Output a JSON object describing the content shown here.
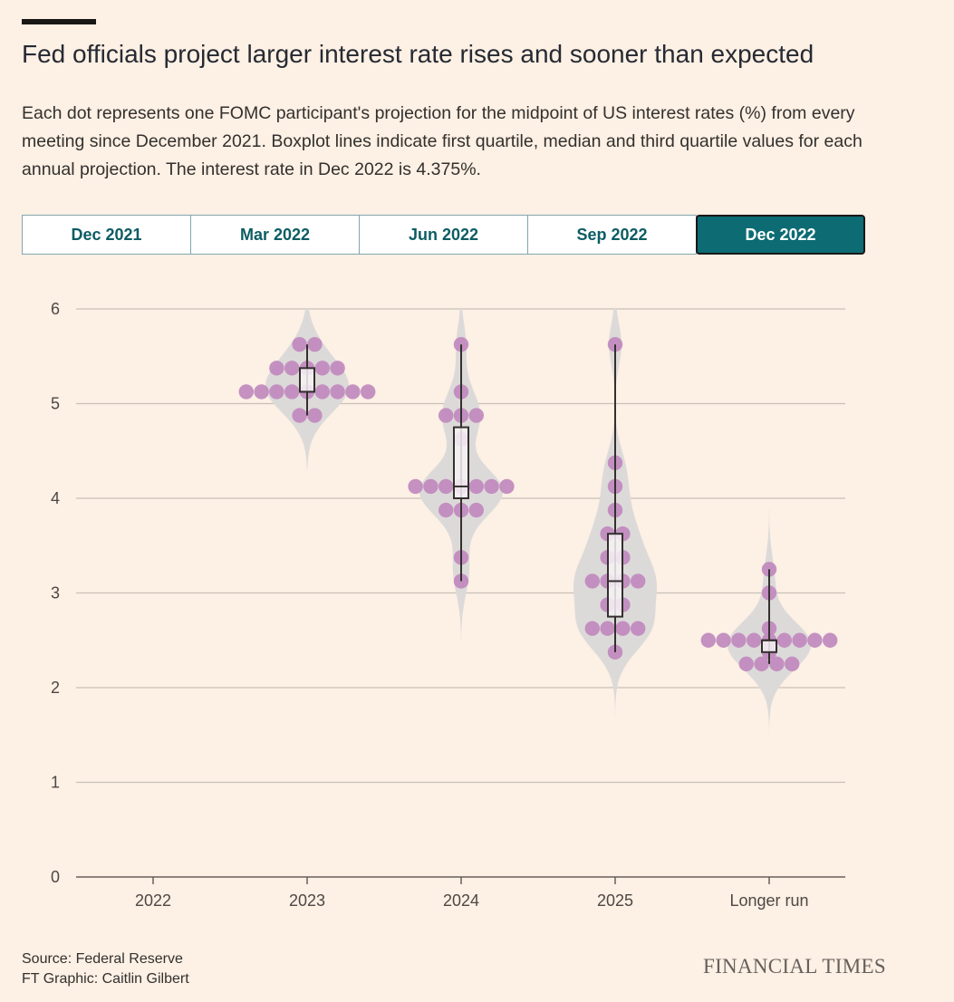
{
  "header": {
    "title": "Fed officials project larger interest rate rises and sooner than expected",
    "subtitle": "Each dot represents one FOMC participant's projection for the midpoint of US interest rates (%) from every meeting since December 2021. Boxplot lines indicate first quartile, median and third quartile values for each annual projection. The interest rate in Dec 2022 is 4.375%."
  },
  "tabs": [
    {
      "label": "Dec 2021",
      "active": false
    },
    {
      "label": "Mar 2022",
      "active": false
    },
    {
      "label": "Jun 2022",
      "active": false
    },
    {
      "label": "Sep 2022",
      "active": false
    },
    {
      "label": "Dec 2022",
      "active": true
    }
  ],
  "colors": {
    "dot": "#c18bbf",
    "violin": "#dcdad9",
    "accent": "#0d6b73",
    "background": "#fdf0e4",
    "gridline": "#c9c1b8"
  },
  "chart_data": {
    "type": "scatter",
    "variant": "beeswarm-with-violin-and-boxplot",
    "categories": [
      "2022",
      "2023",
      "2024",
      "2025",
      "Longer run"
    ],
    "ylim": [
      0,
      6
    ],
    "yticks": [
      0,
      1,
      2,
      3,
      4,
      5,
      6
    ],
    "grid": true,
    "series": [
      {
        "category": "2022",
        "values": []
      },
      {
        "category": "2023",
        "values": [
          5.625,
          5.625,
          5.375,
          5.375,
          5.375,
          5.375,
          5.375,
          5.125,
          5.125,
          5.125,
          5.125,
          5.125,
          5.125,
          5.125,
          5.125,
          5.125,
          4.875,
          4.875
        ],
        "q1": 5.125,
        "median": 5.125,
        "q3": 5.375,
        "min": 4.875,
        "max": 5.625,
        "violin_range": [
          4.3,
          6.0
        ]
      },
      {
        "category": "2024",
        "values": [
          5.625,
          5.125,
          4.875,
          4.875,
          4.875,
          4.625,
          4.125,
          4.125,
          4.125,
          4.125,
          4.125,
          4.125,
          4.125,
          3.875,
          3.875,
          3.875,
          3.375,
          3.125
        ],
        "q1": 4.0,
        "median": 4.125,
        "q3": 4.75,
        "min": 3.125,
        "max": 5.625,
        "violin_range": [
          2.5,
          6.0
        ]
      },
      {
        "category": "2025",
        "values": [
          5.625,
          4.375,
          4.125,
          3.875,
          3.625,
          3.625,
          3.375,
          3.375,
          3.125,
          3.125,
          3.125,
          3.125,
          2.875,
          2.875,
          2.625,
          2.625,
          2.625,
          2.625,
          2.375
        ],
        "q1": 2.75,
        "median": 3.125,
        "q3": 3.625,
        "min": 2.375,
        "max": 5.625,
        "violin_range": [
          1.7,
          6.0
        ]
      },
      {
        "category": "Longer run",
        "values": [
          3.25,
          3.0,
          2.625,
          2.5,
          2.5,
          2.5,
          2.5,
          2.5,
          2.5,
          2.5,
          2.5,
          2.5,
          2.375,
          2.25,
          2.25,
          2.25,
          2.25
        ],
        "q1": 2.375,
        "median": 2.5,
        "q3": 2.5,
        "min": 2.25,
        "max": 3.25,
        "violin_range": [
          1.5,
          3.9
        ]
      }
    ]
  },
  "footer": {
    "source": "Source: Federal Reserve",
    "credit": "FT Graphic: Caitlin Gilbert",
    "logo": "FINANCIAL TIMES"
  }
}
